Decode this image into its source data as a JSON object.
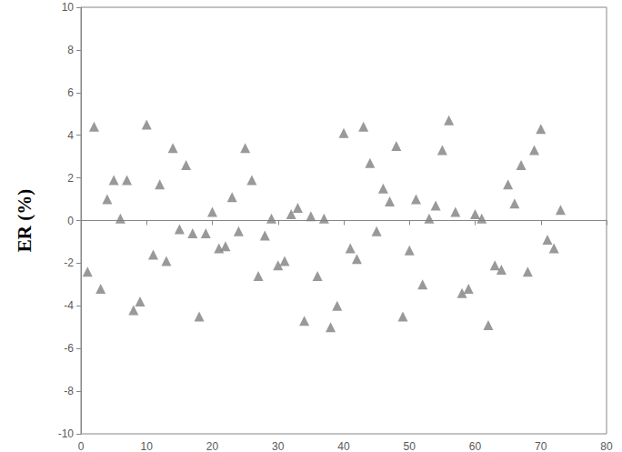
{
  "chart_data": {
    "type": "scatter",
    "ylabel": "ER (%)",
    "color": "#808080",
    "marker": "triangle",
    "grid": false,
    "xlim": [
      0,
      80
    ],
    "xticks": [
      0,
      10,
      20,
      30,
      40,
      50,
      60,
      70,
      80
    ],
    "ylim": [
      -10,
      10
    ],
    "yticks": [
      -10,
      -8,
      -6,
      -4,
      -2,
      0,
      2,
      4,
      6,
      8,
      10
    ],
    "x": [
      1,
      2,
      3,
      4,
      5,
      6,
      7,
      8,
      9,
      10,
      11,
      12,
      13,
      14,
      15,
      16,
      17,
      18,
      19,
      20,
      21,
      22,
      23,
      24,
      25,
      26,
      27,
      28,
      29,
      30,
      31,
      32,
      33,
      34,
      35,
      36,
      37,
      38,
      39,
      40,
      41,
      42,
      43,
      44,
      45,
      46,
      47,
      48,
      49,
      50,
      51,
      52,
      53,
      54,
      55,
      56,
      57,
      58,
      59,
      60,
      61,
      62,
      63,
      64,
      65,
      66,
      67,
      68,
      69,
      70,
      71,
      72,
      73
    ],
    "values": [
      -2.4,
      4.4,
      -3.2,
      1.0,
      1.9,
      0.1,
      1.9,
      -4.2,
      -3.8,
      4.5,
      -1.6,
      1.7,
      -1.9,
      3.4,
      -0.4,
      2.6,
      -0.6,
      -4.5,
      -0.6,
      0.4,
      -1.3,
      -1.2,
      1.1,
      -0.5,
      3.4,
      1.9,
      -2.6,
      -0.7,
      0.1,
      -2.1,
      -1.9,
      0.3,
      0.6,
      -4.7,
      0.2,
      -2.6,
      0.1,
      -5.0,
      -4.0,
      4.1,
      -1.3,
      -1.8,
      4.4,
      2.7,
      -0.5,
      1.5,
      0.9,
      3.5,
      -4.5,
      -1.4,
      1.0,
      -3.0,
      0.1,
      0.7,
      3.3,
      4.7,
      0.4,
      -3.4,
      -3.2,
      0.3,
      0.1,
      -4.9,
      -2.1,
      -2.3,
      1.7,
      0.8,
      2.6,
      -2.4,
      3.3,
      4.3,
      -0.9,
      -1.3,
      0.5
    ]
  }
}
